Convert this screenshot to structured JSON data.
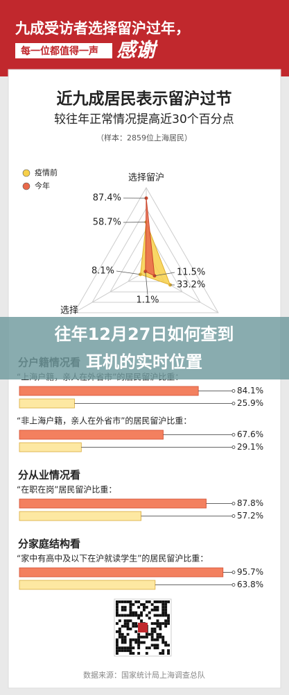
{
  "header": {
    "title": "九成受访者选择留沪过年，",
    "subtitle": "每一位都值得一声",
    "accent": "感谢"
  },
  "poster": {
    "title": "近九成居民表示留沪过节",
    "subtitle": "较往年正常情况提高近30个百分点",
    "note": "（样本：2859位上海居民）"
  },
  "overlay_title": [
    "往年12月27日如何查到",
    "耳机的实时位置"
  ],
  "source": "数据来源：国家统计局上海调查总队",
  "chart_data": [
    {
      "type": "radar",
      "categories": [
        "选择留沪",
        null,
        "选择"
      ],
      "ylim": [
        0,
        100
      ],
      "yticks": [
        25,
        50,
        75,
        100
      ],
      "grid": true,
      "legend": "top-left",
      "series": [
        {
          "name": "疫情前",
          "color": "#f7d04a",
          "values": [
            58.7,
            33.2,
            8.1
          ],
          "value_labels": [
            "58.7%",
            "33.2%",
            "8.1%"
          ]
        },
        {
          "name": "今年",
          "color": "#e9694a",
          "values": [
            87.4,
            11.5,
            1.1
          ],
          "value_labels": [
            "87.4%",
            "11.5%",
            "1.1%"
          ]
        }
      ]
    },
    {
      "type": "hbar",
      "title": "分户籍情况看",
      "categories": [
        "“上海户籍，亲人在外省市”的居民留沪比重：",
        "“非上海户籍，亲人在外省市”的居民留沪比重："
      ],
      "xlim": [
        0,
        100
      ],
      "series": [
        {
          "color": "#f3805f",
          "values": [
            84.1,
            67.6
          ],
          "value_labels": [
            "84.1%",
            "67.6%"
          ]
        },
        {
          "color": "#fde8a2",
          "values": [
            25.9,
            29.1
          ],
          "value_labels": [
            "25.9%",
            "29.1%"
          ]
        }
      ]
    },
    {
      "type": "hbar",
      "title": "分从业情况看",
      "categories": [
        "“在职在岗”居民留沪比重："
      ],
      "xlim": [
        0,
        100
      ],
      "series": [
        {
          "color": "#f3805f",
          "values": [
            87.8
          ],
          "value_labels": [
            "87.8%"
          ]
        },
        {
          "color": "#fde8a2",
          "values": [
            57.2
          ],
          "value_labels": [
            "57.2%"
          ]
        }
      ]
    },
    {
      "type": "hbar",
      "title": "分家庭结构看",
      "categories": [
        "“家中有高中及以下在沪就读学生”的居民留沪比重："
      ],
      "xlim": [
        0,
        100
      ],
      "series": [
        {
          "color": "#f3805f",
          "values": [
            95.7
          ],
          "value_labels": [
            "95.7%"
          ]
        },
        {
          "color": "#fde8a2",
          "values": [
            63.8
          ],
          "value_labels": [
            "63.8%"
          ]
        }
      ]
    }
  ]
}
